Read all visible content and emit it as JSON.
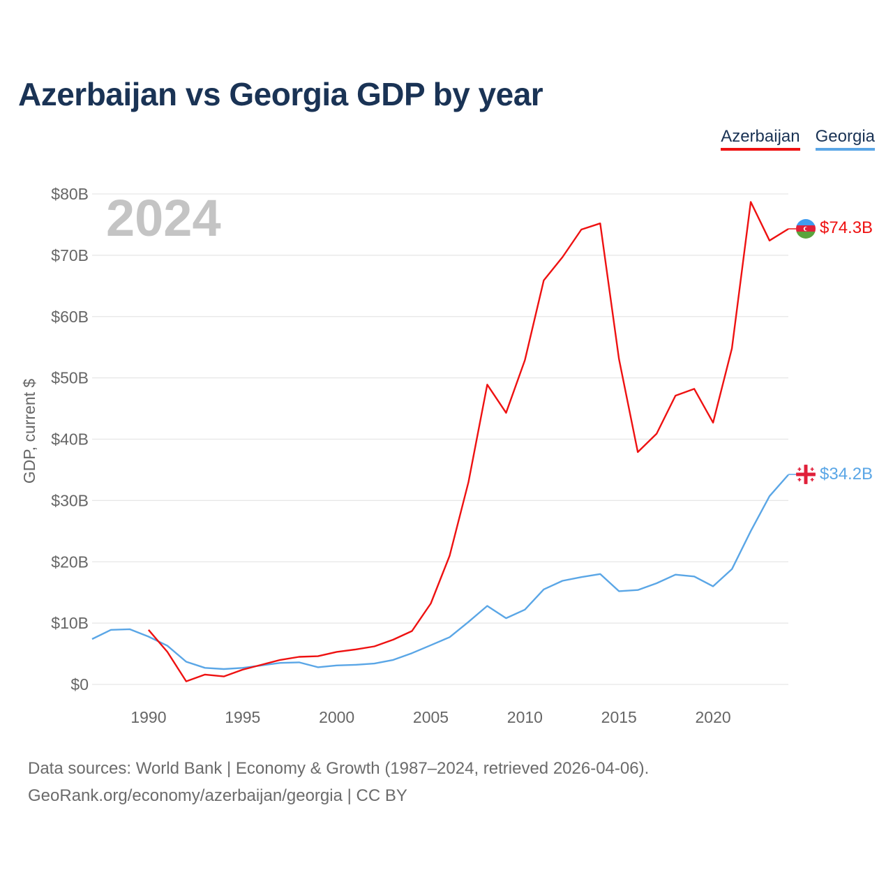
{
  "title": "Azerbaijan vs Georgia GDP by year",
  "legend": [
    {
      "name": "Azerbaijan",
      "color": "#ee1111"
    },
    {
      "name": "Georgia",
      "color": "#5aa6e6"
    }
  ],
  "year_watermark": "2024",
  "end_labels": {
    "azerbaijan": "$74.3B",
    "georgia": "$34.2B"
  },
  "footer": {
    "line1": "Data sources: World Bank | Economy & Growth (1987–2024, retrieved 2026-04-06).",
    "line2": "GeoRank.org/economy/azerbaijan/georgia | CC BY"
  },
  "chart_data": {
    "type": "line",
    "title": "Azerbaijan vs Georgia GDP by year",
    "xlabel": "",
    "ylabel": "GDP, current $",
    "xlim": [
      1987,
      2024
    ],
    "ylim": [
      0,
      80
    ],
    "x_ticks": [
      1990,
      1995,
      2000,
      2005,
      2010,
      2015,
      2020
    ],
    "x_tick_labels": [
      "1990",
      "1995",
      "2000",
      "2005",
      "2010",
      "2015",
      "2020"
    ],
    "y_ticks": [
      0,
      10,
      20,
      30,
      40,
      50,
      60,
      70,
      80
    ],
    "y_tick_labels": [
      "$0",
      "$10B",
      "$20B",
      "$30B",
      "$40B",
      "$50B",
      "$60B",
      "$70B",
      "$80B"
    ],
    "grid": true,
    "legend_position": "top-right",
    "series": [
      {
        "name": "Azerbaijan",
        "color": "#ee1111",
        "x": [
          1990,
          1991,
          1992,
          1993,
          1994,
          1995,
          1996,
          1997,
          1998,
          1999,
          2000,
          2001,
          2002,
          2003,
          2004,
          2005,
          2006,
          2007,
          2008,
          2009,
          2010,
          2011,
          2012,
          2013,
          2014,
          2015,
          2016,
          2017,
          2018,
          2019,
          2020,
          2021,
          2022,
          2023,
          2024
        ],
        "values": [
          8.9,
          5.3,
          0.5,
          1.6,
          1.3,
          2.4,
          3.2,
          4.0,
          4.5,
          4.6,
          5.3,
          5.7,
          6.2,
          7.3,
          8.7,
          13.2,
          21.0,
          33.0,
          48.9,
          44.3,
          52.9,
          65.9,
          69.7,
          74.2,
          75.2,
          53.1,
          37.9,
          40.9,
          47.1,
          48.2,
          42.7,
          54.8,
          78.7,
          72.4,
          74.3
        ]
      },
      {
        "name": "Georgia",
        "color": "#5aa6e6",
        "x": [
          1987,
          1988,
          1989,
          1990,
          1991,
          1992,
          1993,
          1994,
          1995,
          1996,
          1997,
          1998,
          1999,
          2000,
          2001,
          2002,
          2003,
          2004,
          2005,
          2006,
          2007,
          2008,
          2009,
          2010,
          2011,
          2012,
          2013,
          2014,
          2015,
          2016,
          2017,
          2018,
          2019,
          2020,
          2021,
          2022,
          2023,
          2024
        ],
        "values": [
          7.4,
          8.9,
          9.0,
          7.8,
          6.3,
          3.7,
          2.7,
          2.5,
          2.7,
          3.1,
          3.5,
          3.6,
          2.8,
          3.1,
          3.2,
          3.4,
          4.0,
          5.1,
          6.4,
          7.7,
          10.2,
          12.8,
          10.8,
          12.2,
          15.5,
          16.9,
          17.5,
          18.0,
          15.2,
          15.4,
          16.5,
          17.9,
          17.6,
          16.0,
          18.8,
          25.0,
          30.7,
          34.2
        ]
      }
    ]
  }
}
